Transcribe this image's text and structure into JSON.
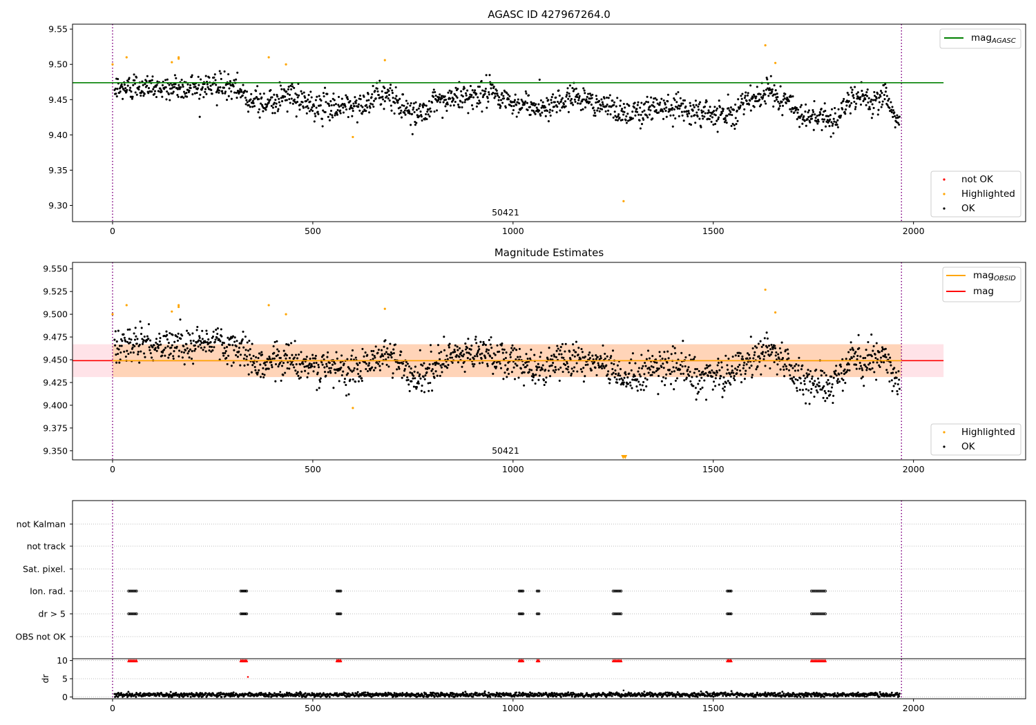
{
  "chart_data": [
    {
      "type": "scatter",
      "title": "AGASC ID 427967264.0",
      "annotation": "50421",
      "xlim": [
        -100,
        2280
      ],
      "ylim": [
        9.277,
        9.557
      ],
      "x_ticks": [
        0,
        500,
        1000,
        1500,
        2000
      ],
      "y_ticks": [
        9.3,
        9.35,
        9.4,
        9.45,
        9.5,
        9.55
      ],
      "y_tick_labels": [
        "9.30",
        "9.35",
        "9.40",
        "9.45",
        "9.50",
        "9.55"
      ],
      "obs_boundaries": [
        0,
        1970
      ],
      "reference_lines": [
        {
          "name": "mag_AGASC",
          "y": 9.474,
          "x_range": [
            -100,
            2075
          ],
          "color": "#008000"
        }
      ],
      "legend_lines": [
        {
          "base": "mag",
          "sub": "AGASC",
          "color": "#008000"
        }
      ],
      "legend_points": [
        {
          "label": "not OK",
          "color": "#ff0000"
        },
        {
          "label": "Highlighted",
          "color": "#ffa500"
        },
        {
          "label": "OK",
          "color": "#000000"
        }
      ],
      "highlighted_points": [
        [
          0,
          9.5
        ],
        [
          35,
          9.51
        ],
        [
          148,
          9.503
        ],
        [
          165,
          9.508
        ],
        [
          165,
          9.51
        ],
        [
          390,
          9.51
        ],
        [
          433,
          9.5
        ],
        [
          600,
          9.397
        ],
        [
          680,
          9.506
        ],
        [
          1276,
          9.306
        ],
        [
          1630,
          9.527
        ],
        [
          1655,
          9.502
        ]
      ],
      "ok_series_trend": [
        [
          5,
          9.462
        ],
        [
          60,
          9.47
        ],
        [
          150,
          9.465
        ],
        [
          230,
          9.47
        ],
        [
          300,
          9.466
        ],
        [
          370,
          9.445
        ],
        [
          440,
          9.455
        ],
        [
          500,
          9.44
        ],
        [
          600,
          9.44
        ],
        [
          680,
          9.458
        ],
        [
          760,
          9.43
        ],
        [
          840,
          9.45
        ],
        [
          930,
          9.46
        ],
        [
          1000,
          9.445
        ],
        [
          1080,
          9.44
        ],
        [
          1150,
          9.455
        ],
        [
          1230,
          9.44
        ],
        [
          1300,
          9.43
        ],
        [
          1380,
          9.445
        ],
        [
          1460,
          9.432
        ],
        [
          1540,
          9.432
        ],
        [
          1640,
          9.462
        ],
        [
          1720,
          9.43
        ],
        [
          1790,
          9.42
        ],
        [
          1850,
          9.45
        ],
        [
          1930,
          9.452
        ],
        [
          1965,
          9.42
        ]
      ],
      "ok_scatter_spread": 0.016
    },
    {
      "type": "scatter",
      "title": "Magnitude Estimates",
      "annotation": "50421",
      "xlim": [
        -100,
        2280
      ],
      "ylim": [
        9.34,
        9.557
      ],
      "x_ticks": [
        0,
        500,
        1000,
        1500,
        2000
      ],
      "y_ticks": [
        9.35,
        9.375,
        9.4,
        9.425,
        9.45,
        9.475,
        9.5,
        9.525,
        9.55
      ],
      "y_tick_labels": [
        "9.350",
        "9.375",
        "9.400",
        "9.425",
        "9.450",
        "9.475",
        "9.500",
        "9.525",
        "9.550"
      ],
      "obs_boundaries": [
        0,
        1970
      ],
      "reference_lines": [
        {
          "name": "mag",
          "y": 9.449,
          "x_range": [
            -100,
            2075
          ],
          "color": "#ff0000"
        },
        {
          "name": "mag_OBSID",
          "y": 9.449,
          "x_range": [
            0,
            1970
          ],
          "color": "#ffa500"
        }
      ],
      "bands": [
        {
          "name": "mag_band",
          "y_range": [
            9.431,
            9.467
          ],
          "x_range": [
            -100,
            2075
          ],
          "color": "#ffc0cb"
        },
        {
          "name": "mag_OBSID_band",
          "y_range": [
            9.431,
            9.467
          ],
          "x_range": [
            0,
            1970
          ],
          "color": "#ffcfa8"
        }
      ],
      "legend_lines": [
        {
          "base": "mag",
          "sub": "OBSID",
          "color": "#ffa500"
        },
        {
          "base": "mag",
          "sub": "",
          "color": "#ff0000"
        }
      ],
      "legend_points": [
        {
          "label": "Highlighted",
          "color": "#ffa500"
        },
        {
          "label": "OK",
          "color": "#000000"
        }
      ],
      "highlighted_points": [
        [
          0,
          9.5
        ],
        [
          35,
          9.51
        ],
        [
          148,
          9.503
        ],
        [
          165,
          9.508
        ],
        [
          165,
          9.51
        ],
        [
          390,
          9.51
        ],
        [
          433,
          9.5
        ],
        [
          600,
          9.397
        ],
        [
          680,
          9.506
        ],
        [
          1630,
          9.527
        ],
        [
          1655,
          9.502
        ]
      ],
      "offscale_markers": [
        1275,
        1280
      ],
      "ok_series_trend": [
        [
          5,
          9.462
        ],
        [
          60,
          9.47
        ],
        [
          150,
          9.465
        ],
        [
          230,
          9.47
        ],
        [
          300,
          9.466
        ],
        [
          370,
          9.445
        ],
        [
          440,
          9.455
        ],
        [
          500,
          9.44
        ],
        [
          600,
          9.44
        ],
        [
          680,
          9.458
        ],
        [
          760,
          9.43
        ],
        [
          840,
          9.45
        ],
        [
          930,
          9.46
        ],
        [
          1000,
          9.445
        ],
        [
          1080,
          9.44
        ],
        [
          1150,
          9.455
        ],
        [
          1230,
          9.44
        ],
        [
          1300,
          9.43
        ],
        [
          1380,
          9.445
        ],
        [
          1460,
          9.432
        ],
        [
          1540,
          9.432
        ],
        [
          1640,
          9.462
        ],
        [
          1720,
          9.43
        ],
        [
          1790,
          9.42
        ],
        [
          1850,
          9.45
        ],
        [
          1930,
          9.452
        ],
        [
          1965,
          9.42
        ]
      ],
      "ok_scatter_spread": 0.016
    },
    {
      "type": "scatter",
      "title": "",
      "xlim": [
        -100,
        2280
      ],
      "x_ticks": [
        0,
        500,
        1000,
        1500,
        2000
      ],
      "obs_boundaries": [
        0,
        1970
      ],
      "flag_categories": [
        "not Kalman",
        "not track",
        "Sat. pixel.",
        "Ion. rad.",
        "dr > 5",
        "OBS not OK"
      ],
      "flag_clusters": [
        [
          40,
          60
        ],
        [
          320,
          335
        ],
        [
          560,
          570
        ],
        [
          1015,
          1025
        ],
        [
          1060,
          1065
        ],
        [
          1250,
          1270
        ],
        [
          1535,
          1545
        ],
        [
          1745,
          1780
        ]
      ],
      "flagged_rows": [
        "Ion. rad.",
        "dr > 5"
      ],
      "dr_panel": {
        "ylabel": "dr",
        "ylim": [
          -0.5,
          10.5
        ],
        "y_ticks": [
          0,
          5,
          10
        ],
        "y_tick_labels": [
          "0",
          "5",
          "10"
        ],
        "capped_value": 10,
        "baseline_mean": 0.6,
        "baseline_spread": 0.5,
        "extra_points": [
          [
            338,
            5.5
          ],
          [
            1276,
            1.8
          ]
        ]
      }
    }
  ]
}
